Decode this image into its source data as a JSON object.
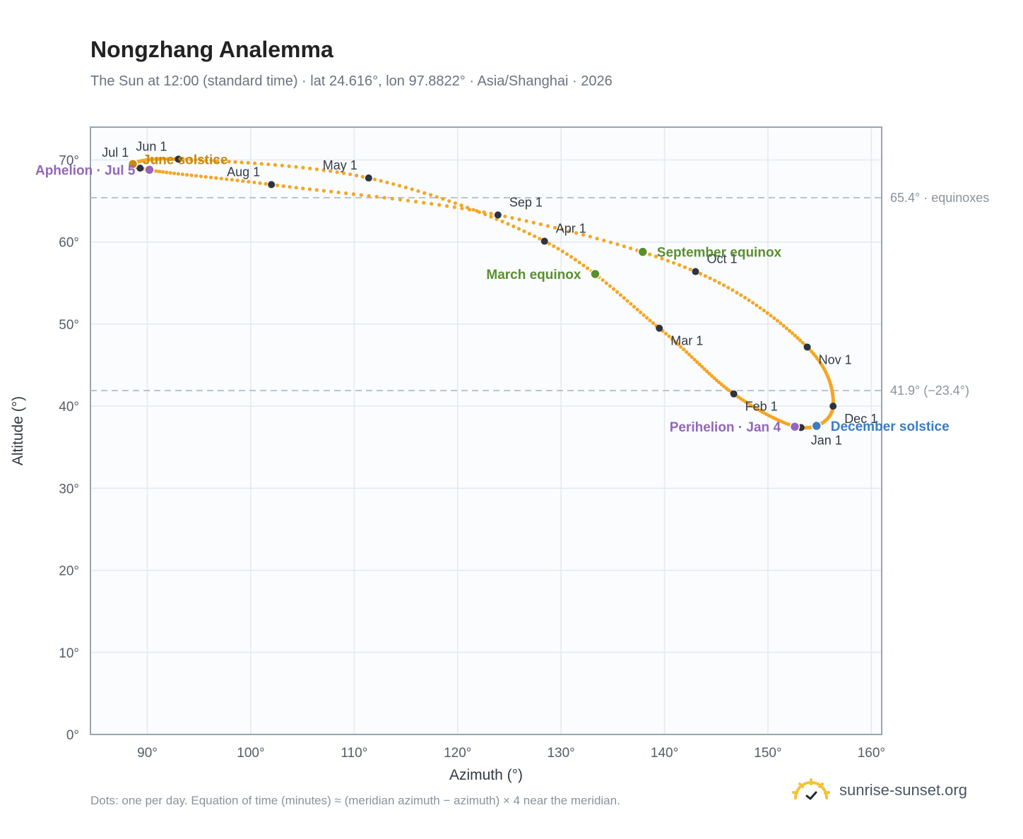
{
  "header": {
    "title": "Nongzhang Analemma",
    "subtitle": "The Sun at 12:00 (standard time) · lat 24.616°, lon 97.8822° · Asia/Shanghai · 2026"
  },
  "footer": {
    "note": "Dots: one per day. Equation of time (minutes) ≈ (meridian azimuth − azimuth) × 4 near the meridian.",
    "brand": "sunrise-sunset.org"
  },
  "colors": {
    "curve": "#f5a623",
    "month_marker": "#2d3340",
    "equinox": "#5a8f2e",
    "december_solstice": "#3a7cc4",
    "june_solstice": "#c8890b",
    "apsis": "#9367b8",
    "reference_line": "#b8c0ca",
    "plot_background": "#fafcfe"
  },
  "chart_data": {
    "type": "scatter",
    "title": "Nongzhang Analemma",
    "xlabel": "Azimuth (°)",
    "ylabel": "Altitude (°)",
    "xlim": [
      84.5,
      161
    ],
    "ylim": [
      0,
      74
    ],
    "x_ticks": [
      90,
      100,
      110,
      120,
      130,
      140,
      150,
      160
    ],
    "x_tick_labels": [
      "90°",
      "100°",
      "110°",
      "120°",
      "130°",
      "140°",
      "150°",
      "160°"
    ],
    "y_ticks": [
      0,
      10,
      20,
      30,
      40,
      50,
      60,
      70
    ],
    "y_tick_labels": [
      "0°",
      "10°",
      "20°",
      "30°",
      "40°",
      "50°",
      "60°",
      "70°"
    ],
    "grid": true,
    "month_markers": [
      {
        "label": "Jan 1",
        "az": 153.2,
        "alt": 37.4
      },
      {
        "label": "Feb 1",
        "az": 146.7,
        "alt": 41.5
      },
      {
        "label": "Mar 1",
        "az": 139.5,
        "alt": 49.5
      },
      {
        "label": "Apr 1",
        "az": 128.4,
        "alt": 60.1
      },
      {
        "label": "May 1",
        "az": 111.4,
        "alt": 67.8
      },
      {
        "label": "Jun 1",
        "az": 93.0,
        "alt": 70.1
      },
      {
        "label": "Jul 1",
        "az": 89.3,
        "alt": 69.0
      },
      {
        "label": "Aug 1",
        "az": 102.0,
        "alt": 67.0
      },
      {
        "label": "Sep 1",
        "az": 123.9,
        "alt": 63.3
      },
      {
        "label": "Oct 1",
        "az": 143.0,
        "alt": 56.4
      },
      {
        "label": "Nov 1",
        "az": 153.8,
        "alt": 47.2
      },
      {
        "label": "Dec 1",
        "az": 156.3,
        "alt": 40.0
      }
    ],
    "events": [
      {
        "label": "March equinox",
        "az": 133.3,
        "alt": 56.1
      },
      {
        "label": "September equinox",
        "az": 137.9,
        "alt": 58.8
      },
      {
        "label": "June solstice",
        "az": 88.6,
        "alt": 69.5
      },
      {
        "label": "December solstice",
        "az": 154.7,
        "alt": 37.6
      },
      {
        "label": "Aphelion · Jul 5",
        "az": 90.2,
        "alt": 68.8
      },
      {
        "label": "Perihelion · Jan 4",
        "az": 152.6,
        "alt": 37.5
      }
    ],
    "reference_lines": [
      {
        "alt": 65.4,
        "label": "65.4° · equinoxes"
      },
      {
        "alt": 41.9,
        "label": "41.9° (−23.4°)"
      }
    ]
  }
}
